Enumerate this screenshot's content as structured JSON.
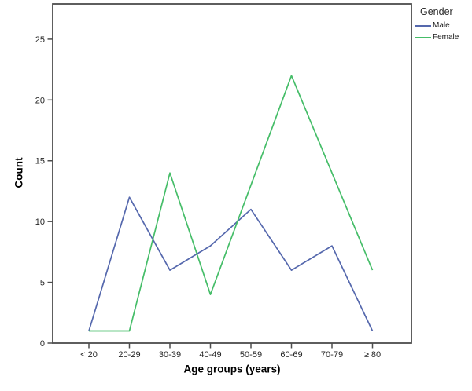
{
  "chart_data": {
    "type": "line",
    "title": "",
    "categories": [
      "< 20",
      "20-29",
      "30-39",
      "40-49",
      "50-59",
      "60-69",
      "70-79",
      "≥ 80"
    ],
    "series": [
      {
        "name": "Male",
        "color": "#5568ad",
        "values": [
          1,
          12,
          6,
          8,
          11,
          6,
          8,
          1
        ]
      },
      {
        "name": "Female",
        "color": "#45bd68",
        "values": [
          1,
          1,
          14,
          4,
          13,
          22,
          14,
          6
        ]
      }
    ],
    "xlabel": "Age groups (years)",
    "ylabel": "Count",
    "ylim": [
      0,
      27.9
    ],
    "yticks": [
      0,
      5,
      10,
      15,
      20,
      25
    ],
    "legend_title": "Gender",
    "legend_position": "top-right",
    "grid": false,
    "axis_color": "#4d4d4d",
    "tick_label_color": "#262626"
  }
}
